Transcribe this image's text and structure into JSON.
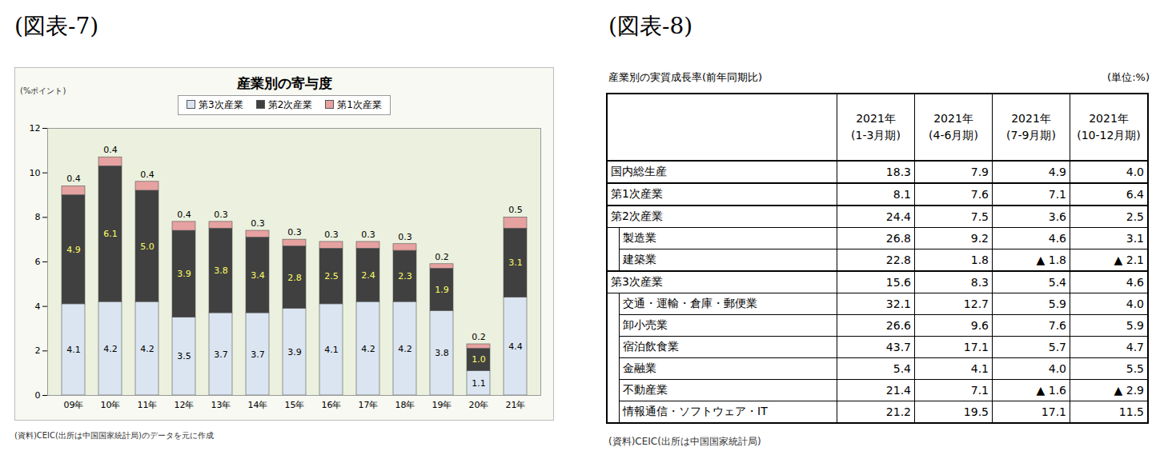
{
  "chart_data": {
    "type": "bar",
    "figure_label": "(図表-7)",
    "title": "産業別の寄与度",
    "y_label": "(%ポイント)",
    "source": "(資料)CEIC(出所は中国国家統計局)のデータを元に作成",
    "stacked": true,
    "data_labels": true,
    "legend": "top",
    "grid": false,
    "categories": [
      "09年",
      "10年",
      "11年",
      "12年",
      "13年",
      "14年",
      "15年",
      "16年",
      "17年",
      "18年",
      "19年",
      "20年",
      "21年"
    ],
    "series": [
      {
        "name": "第3次産業",
        "color": "#dbe5f1",
        "values": [
          4.1,
          4.2,
          4.2,
          3.5,
          3.7,
          3.7,
          3.9,
          4.1,
          4.2,
          4.2,
          3.8,
          1.1,
          4.4
        ]
      },
      {
        "name": "第2次産業",
        "color": "#404040",
        "values": [
          4.9,
          6.1,
          5.0,
          3.9,
          3.8,
          3.4,
          2.8,
          2.5,
          2.4,
          2.3,
          1.9,
          1.0,
          3.1
        ],
        "value_labels": [
          "4.9",
          "6.1",
          "5.0",
          "3.9",
          "3.8",
          "3.4",
          "2.8",
          "2.5",
          "2.4",
          "2.3",
          "1.9",
          "1.0",
          "3.1"
        ]
      },
      {
        "name": "第1次産業",
        "color": "#e6a1a1",
        "values": [
          0.4,
          0.4,
          0.4,
          0.4,
          0.3,
          0.3,
          0.3,
          0.3,
          0.3,
          0.3,
          0.2,
          0.2,
          0.5
        ]
      }
    ],
    "ylim": [
      0,
      12
    ],
    "yticks": [
      0,
      2,
      4,
      6,
      8,
      10,
      12
    ]
  },
  "table_figure": {
    "figure_label": "(図表-8)",
    "title": "産業別の実質成長率(前年同期比)",
    "unit": "(単位:%)",
    "source": "(資料)CEIC(出所は中国国家統計局)",
    "header": [
      [
        "2021年",
        "(1-3月期)"
      ],
      [
        "2021年",
        "(4-6月期)"
      ],
      [
        "2021年",
        "(7-9月期)"
      ],
      [
        "2021年",
        "(10-12月期)"
      ]
    ],
    "rows": [
      {
        "name": "国内総生産",
        "indent": false,
        "values": [
          "18.3",
          "7.9",
          "4.9",
          "4.0"
        ]
      },
      {
        "name": "第1次産業",
        "indent": false,
        "values": [
          "8.1",
          "7.6",
          "7.1",
          "6.4"
        ]
      },
      {
        "name": "第2次産業",
        "indent": false,
        "values": [
          "24.4",
          "7.5",
          "3.6",
          "2.5"
        ]
      },
      {
        "name": "製造業",
        "indent": true,
        "values": [
          "26.8",
          "9.2",
          "4.6",
          "3.1"
        ]
      },
      {
        "name": "建築業",
        "indent": true,
        "values": [
          "22.8",
          "1.8",
          "▲ 1.8",
          "▲ 2.1"
        ]
      },
      {
        "name": "第3次産業",
        "indent": false,
        "values": [
          "15.6",
          "8.3",
          "5.4",
          "4.6"
        ]
      },
      {
        "name": "交通・運輸・倉庫・郵便業",
        "indent": true,
        "values": [
          "32.1",
          "12.7",
          "5.9",
          "4.0"
        ]
      },
      {
        "name": "卸小売業",
        "indent": true,
        "values": [
          "26.6",
          "9.6",
          "7.6",
          "5.9"
        ]
      },
      {
        "name": "宿泊飲食業",
        "indent": true,
        "values": [
          "43.7",
          "17.1",
          "5.7",
          "4.7"
        ]
      },
      {
        "name": "金融業",
        "indent": true,
        "values": [
          "5.4",
          "4.1",
          "4.0",
          "5.5"
        ]
      },
      {
        "name": "不動産業",
        "indent": true,
        "values": [
          "21.4",
          "7.1",
          "▲ 1.6",
          "▲ 2.9"
        ]
      },
      {
        "name": "情報通信・ソフトウェア・IT",
        "indent": true,
        "values": [
          "21.2",
          "19.5",
          "17.1",
          "11.5"
        ]
      }
    ]
  }
}
